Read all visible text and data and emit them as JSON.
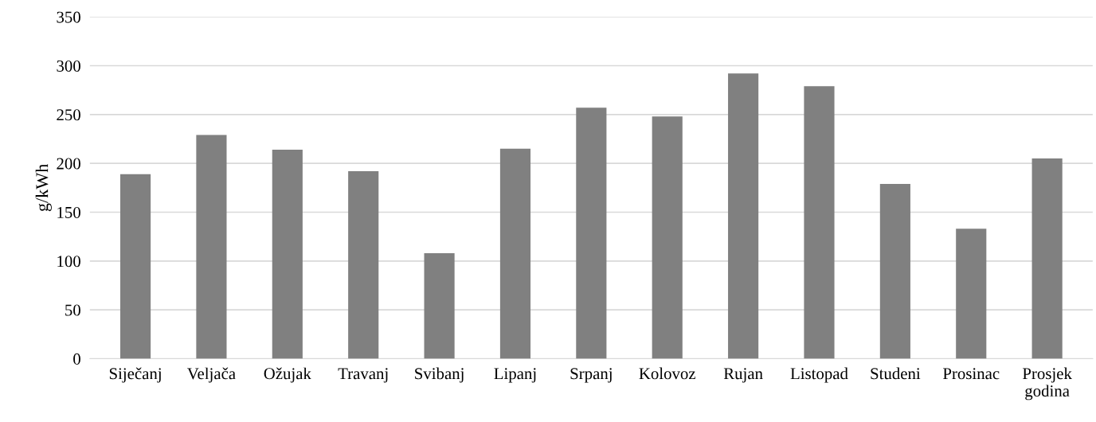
{
  "chart_data": {
    "type": "bar",
    "ylabel": "g/kWh",
    "categories": [
      "Siječanj",
      "Veljača",
      "Ožujak",
      "Travanj",
      "Svibanj",
      "Lipanj",
      "Srpanj",
      "Kolovoz",
      "Rujan",
      "Listopad",
      "Studeni",
      "Prosinac",
      "Prosjek\ngodina"
    ],
    "values": [
      189,
      229,
      214,
      192,
      108,
      215,
      257,
      248,
      292,
      279,
      179,
      133,
      205
    ],
    "color": "#808080",
    "ylim": [
      0,
      350
    ],
    "yticks": [
      0,
      50,
      100,
      150,
      200,
      250,
      300,
      350
    ],
    "grid": "y"
  }
}
